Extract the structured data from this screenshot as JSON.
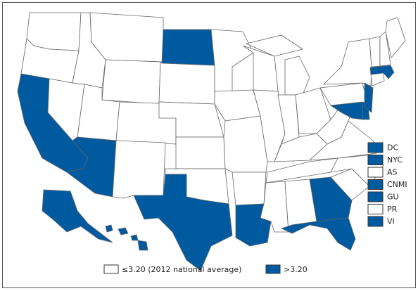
{
  "legend": [
    {
      "label": "≤3.20 (2012 national average)",
      "color": "#ffffff"
    },
    {
      "label": ">3.20",
      "color": "#005aa0"
    }
  ],
  "territories": [
    {
      "label": "DC",
      "color": "#005aa0"
    },
    {
      "label": "NYC",
      "color": "#005aa0"
    },
    {
      "label": "AS",
      "color": "#ffffff"
    },
    {
      "label": "CNMI",
      "color": "#005aa0"
    },
    {
      "label": "GU",
      "color": "#005aa0"
    },
    {
      "label": "PR",
      "color": "#ffffff"
    },
    {
      "label": "VI",
      "color": "#005aa0"
    }
  ]
}
